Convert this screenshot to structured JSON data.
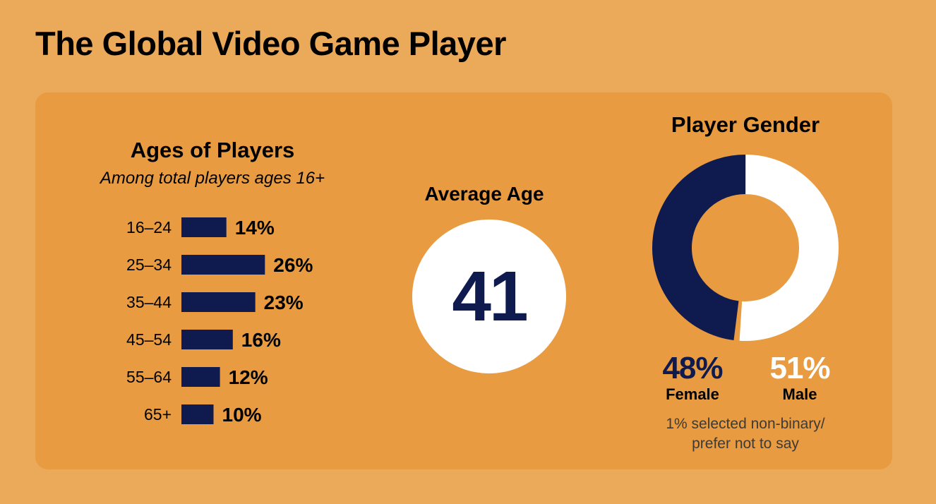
{
  "title": "The Global Video Game Player",
  "ages": {
    "title": "Ages of Players",
    "subtitle": "Among total players ages 16+"
  },
  "average_age": {
    "label": "Average Age",
    "value": "41"
  },
  "gender": {
    "title": "Player Gender",
    "female_pct": "48%",
    "female_label": "Female",
    "male_pct": "51%",
    "male_label": "Male",
    "note_line1": "1% selected non-binary/",
    "note_line2": "prefer not to say"
  },
  "colors": {
    "background": "#EBA95A",
    "panel": "#E89B40",
    "navy": "#0F1A4F",
    "white": "#FFFFFF"
  },
  "chart_data": [
    {
      "type": "bar",
      "orientation": "horizontal",
      "title": "Ages of Players",
      "subtitle": "Among total players ages 16+",
      "categories": [
        "16–24",
        "25–34",
        "35–44",
        "45–54",
        "55–64",
        "65+"
      ],
      "values": [
        14,
        26,
        23,
        16,
        12,
        10
      ],
      "value_labels": [
        "14%",
        "26%",
        "23%",
        "16%",
        "12%",
        "10%"
      ],
      "unit": "%",
      "color": "#0F1A4F"
    },
    {
      "type": "pie",
      "style": "donut",
      "title": "Player Gender",
      "categories": [
        "Female",
        "Male",
        "Non-binary/prefer not to say"
      ],
      "values": [
        48,
        51,
        1
      ],
      "colors": [
        "#0F1A4F",
        "#FFFFFF",
        "#E89B40"
      ]
    }
  ]
}
